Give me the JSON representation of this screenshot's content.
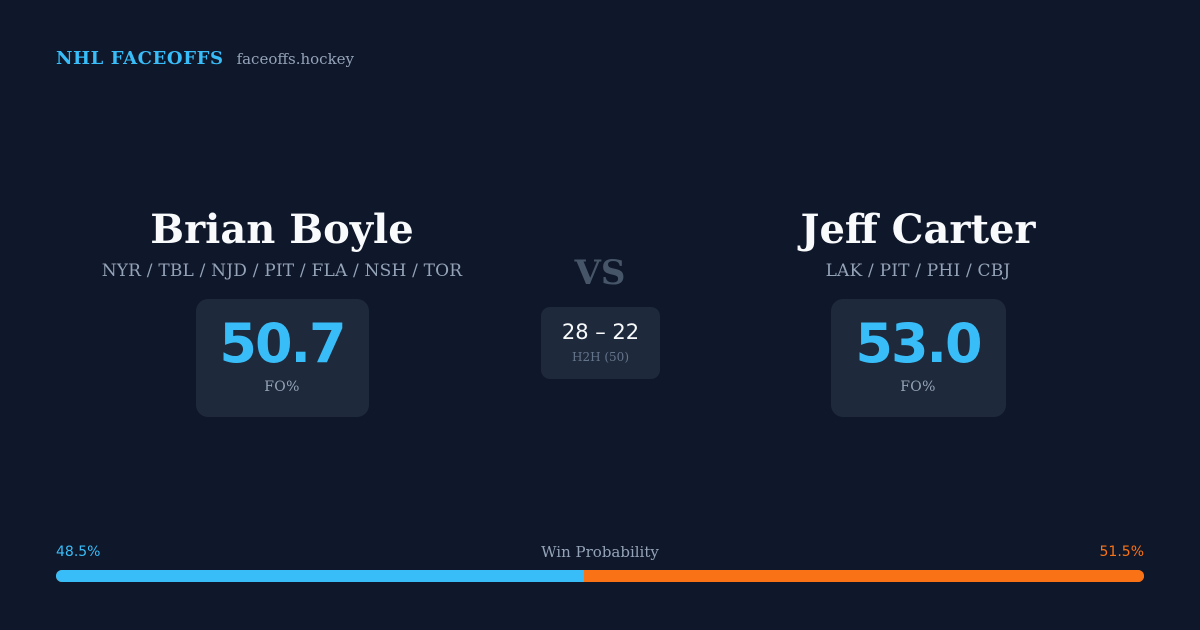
{
  "brand": {
    "title": "NHL FACEOFFS",
    "domain": "faceoffs.hockey"
  },
  "players": [
    {
      "name": "Brian Boyle",
      "teams": "NYR / TBL / NJD / PIT / FLA / NSH / TOR",
      "fo_value": "50.7",
      "fo_label": "FO%"
    },
    {
      "name": "Jeff Carter",
      "teams": "LAK / PIT / PHI / CBJ",
      "fo_value": "53.0",
      "fo_label": "FO%"
    }
  ],
  "vs_label": "VS",
  "h2h": {
    "score": "28 – 22",
    "label": "H2H (50)"
  },
  "win_probability": {
    "title": "Win Probability",
    "left_text": "48.5%",
    "right_text": "51.5%",
    "left_value": 48.5,
    "right_value": 51.5
  },
  "colors": {
    "background": "#0f172a",
    "card": "#1e293b",
    "accent_blue": "#38bdf8",
    "accent_orange": "#f97316",
    "muted": "#94a3b8"
  }
}
